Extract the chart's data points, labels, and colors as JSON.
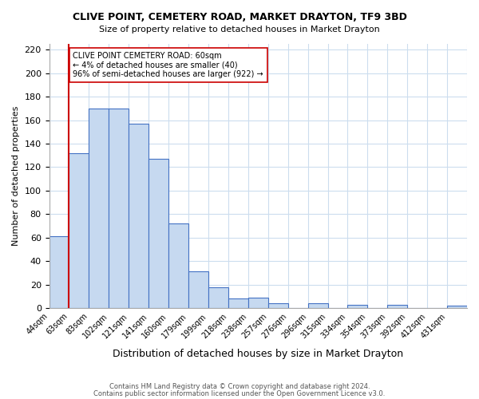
{
  "title1": "CLIVE POINT, CEMETERY ROAD, MARKET DRAYTON, TF9 3BD",
  "title2": "Size of property relative to detached houses in Market Drayton",
  "xlabel": "Distribution of detached houses by size in Market Drayton",
  "ylabel": "Number of detached properties",
  "bin_labels": [
    "44sqm",
    "63sqm",
    "83sqm",
    "102sqm",
    "121sqm",
    "141sqm",
    "160sqm",
    "179sqm",
    "199sqm",
    "218sqm",
    "238sqm",
    "257sqm",
    "276sqm",
    "296sqm",
    "315sqm",
    "334sqm",
    "354sqm",
    "373sqm",
    "392sqm",
    "412sqm",
    "431sqm"
  ],
  "bar_heights": [
    61,
    132,
    170,
    170,
    157,
    127,
    72,
    31,
    18,
    8,
    9,
    4,
    0,
    4,
    0,
    3,
    0,
    3,
    0,
    0,
    2
  ],
  "bar_color": "#c6d9f0",
  "bar_edge_color": "#4472c4",
  "marker_line_color": "#cc0000",
  "annotation_line1": "CLIVE POINT CEMETERY ROAD: 60sqm",
  "annotation_line2": "← 4% of detached houses are smaller (40)",
  "annotation_line3": "96% of semi-detached houses are larger (922) →",
  "annotation_box_edge": "#cc0000",
  "ylim": [
    0,
    225
  ],
  "yticks": [
    0,
    20,
    40,
    60,
    80,
    100,
    120,
    140,
    160,
    180,
    200,
    220
  ],
  "footer1": "Contains HM Land Registry data © Crown copyright and database right 2024.",
  "footer2": "Contains public sector information licensed under the Open Government Licence v3.0.",
  "bg_color": "#ffffff",
  "grid_color": "#ccddee"
}
